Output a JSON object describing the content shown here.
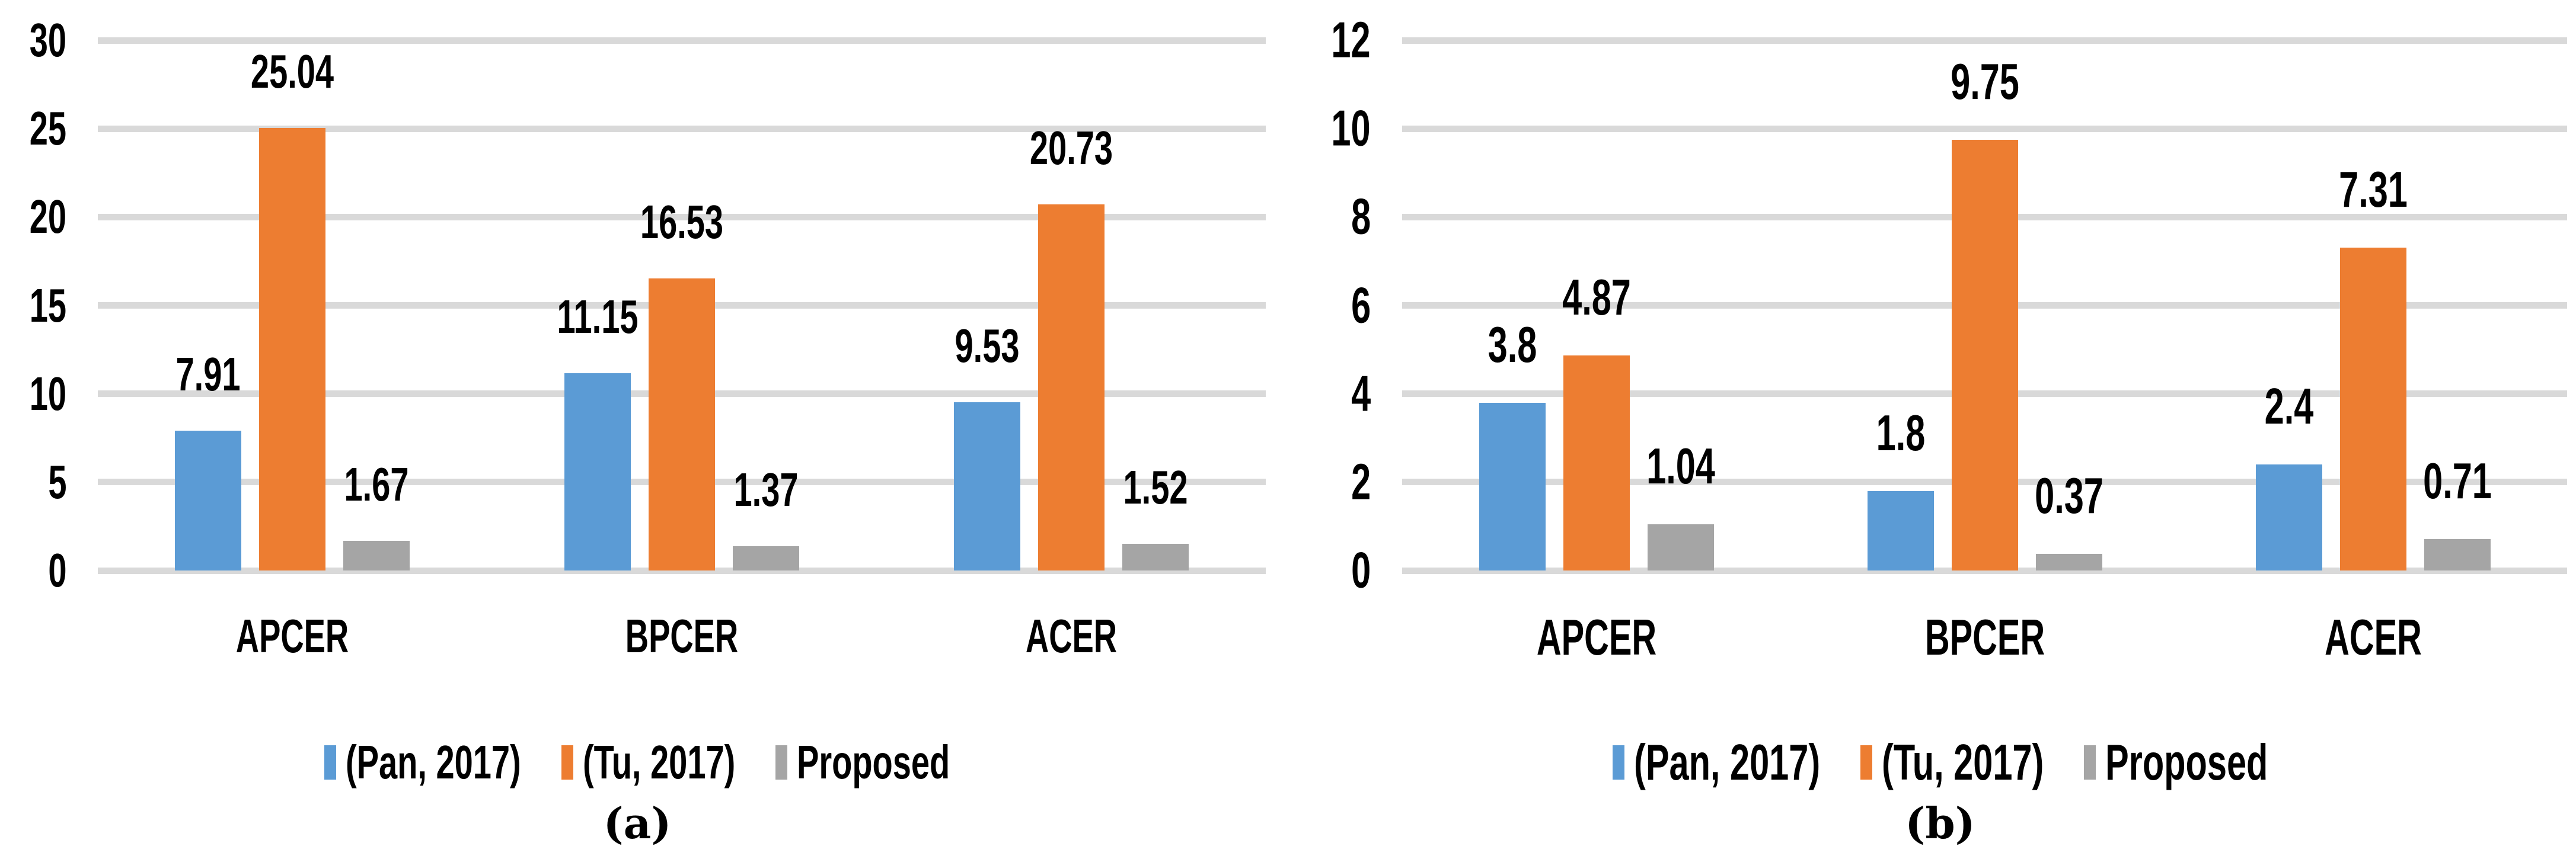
{
  "figure": {
    "background": "#FFFFFF",
    "text_color": "#000000",
    "gridline_color": "#D9D9D9"
  },
  "chart_data": [
    {
      "type": "bar",
      "panel": "a",
      "caption": "(a)",
      "categories": [
        "APCER",
        "BPCER",
        "ACER"
      ],
      "series": [
        {
          "name": "(Pan, 2017)",
          "color": "#5B9BD5",
          "values": [
            7.91,
            11.15,
            9.53
          ],
          "labels": [
            "7.91",
            "11.15",
            "9.53"
          ]
        },
        {
          "name": "(Tu, 2017)",
          "color": "#ED7D31",
          "values": [
            25.04,
            16.53,
            20.73
          ],
          "labels": [
            "25.04",
            "16.53",
            "20.73"
          ]
        },
        {
          "name": "Proposed",
          "color": "#A5A5A5",
          "values": [
            1.67,
            1.37,
            1.52
          ],
          "labels": [
            "1.67",
            "1.37",
            "1.52"
          ]
        }
      ],
      "ylim": [
        0,
        30
      ],
      "yticks": [
        "0",
        "5",
        "10",
        "15",
        "20",
        "25",
        "30"
      ],
      "grid": true,
      "legend_position": "bottom"
    },
    {
      "type": "bar",
      "panel": "b",
      "caption": "(b)",
      "categories": [
        "APCER",
        "BPCER",
        "ACER"
      ],
      "series": [
        {
          "name": "(Pan, 2017)",
          "color": "#5B9BD5",
          "values": [
            3.8,
            1.8,
            2.4
          ],
          "labels": [
            "3.8",
            "1.8",
            "2.4"
          ]
        },
        {
          "name": "(Tu, 2017)",
          "color": "#ED7D31",
          "values": [
            4.87,
            9.75,
            7.31
          ],
          "labels": [
            "4.87",
            "9.75",
            "7.31"
          ]
        },
        {
          "name": "Proposed",
          "color": "#A5A5A5",
          "values": [
            1.04,
            0.37,
            0.71
          ],
          "labels": [
            "1.04",
            "0.37",
            "0.71"
          ]
        }
      ],
      "ylim": [
        0,
        12
      ],
      "yticks": [
        "0",
        "2",
        "4",
        "6",
        "8",
        "10",
        "12"
      ],
      "grid": true,
      "legend_position": "bottom"
    }
  ]
}
